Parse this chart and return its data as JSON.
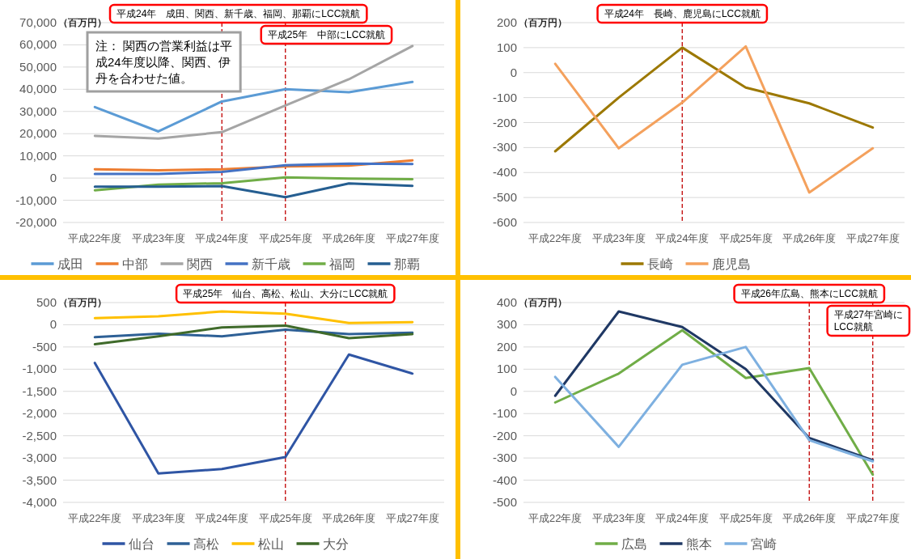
{
  "chart_data": [
    {
      "type": "line",
      "ylabel": "（百万円）",
      "categories": [
        "平成22年度",
        "平成23年度",
        "平成24年度",
        "平成25年度",
        "平成26年度",
        "平成27年度"
      ],
      "series": [
        {
          "name": "成田",
          "color": "#5b9bd5",
          "values": [
            32000,
            21000,
            34500,
            40000,
            38700,
            43300
          ]
        },
        {
          "name": "中部",
          "color": "#ed7d31",
          "values": [
            4000,
            3500,
            4000,
            5200,
            5600,
            8000
          ]
        },
        {
          "name": "関西",
          "color": "#a5a5a5",
          "values": [
            19000,
            17800,
            20700,
            32700,
            44500,
            59500
          ]
        },
        {
          "name": "新千歳",
          "color": "#4472c4",
          "values": [
            1900,
            1900,
            2800,
            5800,
            6500,
            6300
          ]
        },
        {
          "name": "福岡",
          "color": "#70ad47",
          "values": [
            -5500,
            -3000,
            -2300,
            300,
            -200,
            -500
          ]
        },
        {
          "name": "那覇",
          "color": "#255e91",
          "values": [
            -3900,
            -3900,
            -3600,
            -8600,
            -2400,
            -3500
          ]
        }
      ],
      "ylim": [
        -20000,
        70000
      ],
      "yticks": [
        {
          "value": -20000,
          "label": "-20,000"
        },
        {
          "value": -10000,
          "label": "-10,000"
        },
        0,
        {
          "value": 10000,
          "label": "10,000"
        },
        {
          "value": 20000,
          "label": "20,000"
        },
        {
          "value": 30000,
          "label": "30,000"
        },
        {
          "value": 40000,
          "label": "40,000"
        },
        {
          "value": 50000,
          "label": "50,000"
        },
        {
          "value": 60000,
          "label": "60,000"
        },
        {
          "value": 70000,
          "label": "70,000"
        }
      ],
      "ref_lines": [
        {
          "axis": "x",
          "value": "平成24年度",
          "color": "#c00000",
          "line_style": "dashed",
          "label": "平成24年　成田、関西、新千歳、福岡、那覇にLCC就航"
        },
        {
          "axis": "x",
          "value": "平成25年度",
          "color": "#c00000",
          "line_style": "dashed",
          "label": "平成25年　中部にLCC就航"
        }
      ],
      "annotations": [
        "注：  関西の営業利益は平成24年度以降、関西、伊丹を合わせた値。"
      ],
      "grid": "y",
      "legend": "bottom"
    },
    {
      "type": "line",
      "ylabel": "（百万円）",
      "categories": [
        "平成22年度",
        "平成23年度",
        "平成24年度",
        "平成25年度",
        "平成26年度",
        "平成27年度"
      ],
      "series": [
        {
          "name": "長崎",
          "color": "#9c7800",
          "values": [
            -315,
            -100,
            100,
            -60,
            -123,
            -220
          ]
        },
        {
          "name": "鹿児島",
          "color": "#f4a15d",
          "values": [
            35,
            -303,
            -120,
            105,
            -480,
            -303
          ]
        }
      ],
      "ylim": [
        -600,
        200
      ],
      "yticks": [
        -600,
        -500,
        -400,
        -300,
        -200,
        -100,
        0,
        100,
        200
      ],
      "ref_lines": [
        {
          "axis": "x",
          "value": "平成24年度",
          "color": "#c00000",
          "line_style": "dashed",
          "label": "平成24年　長崎、鹿児島にLCC就航"
        }
      ],
      "grid": "y",
      "legend": "bottom"
    },
    {
      "type": "line",
      "ylabel": "（百万円）",
      "categories": [
        "平成22年度",
        "平成23年度",
        "平成24年度",
        "平成25年度",
        "平成26年度",
        "平成27年度"
      ],
      "series": [
        {
          "name": "仙台",
          "color": "#2f55a4",
          "values": [
            -860,
            -3350,
            -3250,
            -2980,
            -670,
            -1100
          ]
        },
        {
          "name": "高松",
          "color": "#2e6096",
          "values": [
            -280,
            -200,
            -260,
            -110,
            -210,
            -180
          ]
        },
        {
          "name": "松山",
          "color": "#ffc000",
          "values": [
            150,
            190,
            300,
            250,
            40,
            60
          ]
        },
        {
          "name": "大分",
          "color": "#3f6a2a",
          "values": [
            -440,
            -260,
            -60,
            -20,
            -300,
            -210
          ]
        }
      ],
      "ylim": [
        -4000,
        500
      ],
      "yticks": [
        {
          "value": -4000,
          "label": "-4,000"
        },
        {
          "value": -3500,
          "label": "-3,500"
        },
        {
          "value": -3000,
          "label": "-3,000"
        },
        {
          "value": -2500,
          "label": "-2,500"
        },
        {
          "value": -2000,
          "label": "-2,000"
        },
        {
          "value": -1500,
          "label": "-1,500"
        },
        {
          "value": -1000,
          "label": "-1,000"
        },
        -500,
        0,
        500
      ],
      "ref_lines": [
        {
          "axis": "x",
          "value": "平成25年度",
          "color": "#c00000",
          "line_style": "dashed",
          "label": "平成25年　仙台、高松、松山、大分にLCC就航"
        }
      ],
      "grid": "y",
      "legend": "bottom"
    },
    {
      "type": "line",
      "ylabel": "（百万円）",
      "categories": [
        "平成22年度",
        "平成23年度",
        "平成24年度",
        "平成25年度",
        "平成26年度",
        "平成27年度"
      ],
      "series": [
        {
          "name": "広島",
          "color": "#70ad47",
          "values": [
            -50,
            80,
            275,
            60,
            105,
            -375
          ]
        },
        {
          "name": "熊本",
          "color": "#1f3864",
          "values": [
            -20,
            360,
            290,
            100,
            -210,
            -310
          ]
        },
        {
          "name": "宮崎",
          "color": "#7eb0e0",
          "values": [
            65,
            -250,
            120,
            200,
            -220,
            -315
          ]
        }
      ],
      "ylim": [
        -500,
        400
      ],
      "yticks": [
        -500,
        -400,
        -300,
        -200,
        -100,
        0,
        100,
        200,
        300,
        400
      ],
      "ref_lines": [
        {
          "axis": "x",
          "value": "平成26年度",
          "color": "#c00000",
          "line_style": "dashed",
          "label": "平成26年広島、熊本にLCC就航"
        },
        {
          "axis": "x",
          "value": "平成27年度",
          "color": "#c00000",
          "line_style": "dashed",
          "label": "平成27年宮崎にLCC就航"
        }
      ],
      "grid": "y",
      "legend": "bottom"
    }
  ]
}
